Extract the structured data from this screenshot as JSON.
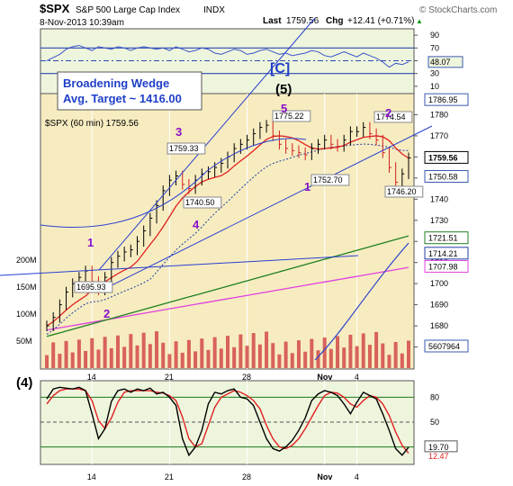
{
  "header": {
    "symbol": "$SPX",
    "name": "S&P 500 Large Cap Index",
    "exchange": "INDX",
    "date": "8-Nov-2013 10:39am",
    "last_label": "Last",
    "last": "1759.56",
    "chg_label": "Chg",
    "chg": "+12.41 (+0.71%)",
    "chg_arrow": "▲",
    "copyright": "© StockCharts.com"
  },
  "annotations": {
    "pattern_title": "Broadening Wedge",
    "pattern_target": "Avg. Target ~ 1416.00",
    "wave_c": "[C]",
    "wave_5_big": "(5)",
    "wave_4_big": "(4)",
    "price_legend": "$SPX (60 min) 1759.56",
    "wave_1a": "1",
    "wave_2a": "2",
    "wave_3": "3",
    "wave_4": "4",
    "wave_5": "5",
    "wave_1b": "1",
    "wave_2b": "2"
  },
  "colors": {
    "rsi_bg": "#eef5dd",
    "price_bg": "#f7ecc0",
    "rsi_line": "#3d55c8",
    "ema_red": "#e02020",
    "sma_green": "#208020",
    "sma_magenta": "#e040e0",
    "dotted_blue": "#2040a0",
    "wedge": "#2840d0",
    "wave_purple": "#8a10c8",
    "volume": "#d04040",
    "volume_sma": "#2040a0",
    "stoch_fast": "#000000",
    "stoch_slow": "#e02020"
  },
  "chart_data": [
    {
      "type": "line",
      "name": "RSI panel",
      "ylim": [
        0,
        100
      ],
      "y_ticks": [
        10,
        30,
        50,
        70,
        90
      ],
      "current_value_label": "48.07",
      "values": [
        50,
        55,
        60,
        68,
        72,
        74,
        70,
        66,
        72,
        70,
        68,
        72,
        70,
        66,
        70,
        72,
        70,
        68,
        70,
        66,
        72,
        68,
        64,
        66,
        70,
        68,
        62,
        60,
        64,
        68,
        66,
        60,
        62,
        66,
        68,
        64,
        60,
        62,
        58,
        60,
        62,
        66,
        64,
        58,
        56,
        60,
        64,
        60,
        56,
        62,
        58,
        54,
        48,
        40,
        46,
        44,
        48
      ]
    },
    {
      "type": "line",
      "name": "$SPX (60 min)",
      "x_tick_labels": [
        "14",
        "21",
        "28",
        "Nov",
        "4"
      ],
      "ylim": [
        1660,
        1790
      ],
      "y_ticks": [
        1670,
        1680,
        1690,
        1700,
        1710,
        1720,
        1730,
        1740,
        1750,
        1760,
        1770,
        1780
      ],
      "volume_ticks": [
        "50M",
        "100M",
        "150M",
        "200M"
      ],
      "right_labels": [
        "1786.95",
        "1759.56",
        "1750.58",
        "1721.51",
        "1714.21",
        "1707.98",
        "5607964"
      ],
      "price_labels": [
        "1775.22",
        "1774.54",
        "1759.33",
        "1752.70",
        "1746.20",
        "1740.50",
        "1695.93"
      ],
      "close": [
        1680,
        1684,
        1690,
        1696,
        1700,
        1703,
        1706,
        1701,
        1697,
        1703,
        1710,
        1713,
        1715,
        1716,
        1720,
        1725,
        1731,
        1737,
        1744,
        1749,
        1751,
        1747,
        1745,
        1749,
        1752,
        1753,
        1755,
        1757,
        1760,
        1764,
        1766,
        1768,
        1771,
        1774,
        1775,
        1770,
        1766,
        1764,
        1763,
        1762,
        1761,
        1764,
        1766,
        1768,
        1766,
        1765,
        1768,
        1772,
        1772,
        1774,
        1771,
        1768,
        1762,
        1755,
        1748,
        1752,
        1759.56
      ]
    },
    {
      "type": "line",
      "name": "Stochastic panel",
      "ylim": [
        0,
        100
      ],
      "y_ticks": [
        20,
        50,
        80
      ],
      "current_value_labels": [
        "19.70",
        "12.47"
      ],
      "fast": [
        78,
        90,
        92,
        91,
        90,
        92,
        88,
        60,
        30,
        42,
        75,
        88,
        90,
        86,
        90,
        88,
        91,
        84,
        86,
        80,
        70,
        30,
        10,
        20,
        40,
        72,
        86,
        84,
        88,
        90,
        80,
        78,
        70,
        50,
        30,
        18,
        15,
        20,
        28,
        40,
        55,
        76,
        84,
        88,
        86,
        82,
        72,
        60,
        74,
        86,
        82,
        78,
        60,
        40,
        18,
        10,
        19.7
      ],
      "slow": [
        72,
        82,
        88,
        90,
        90,
        90,
        88,
        76,
        52,
        42,
        55,
        74,
        86,
        88,
        88,
        88,
        88,
        86,
        85,
        82,
        76,
        56,
        30,
        20,
        24,
        46,
        68,
        80,
        84,
        88,
        86,
        82,
        76,
        66,
        46,
        30,
        20,
        18,
        22,
        30,
        42,
        56,
        70,
        82,
        86,
        85,
        80,
        72,
        68,
        76,
        82,
        80,
        72,
        58,
        38,
        22,
        12.47
      ]
    }
  ]
}
